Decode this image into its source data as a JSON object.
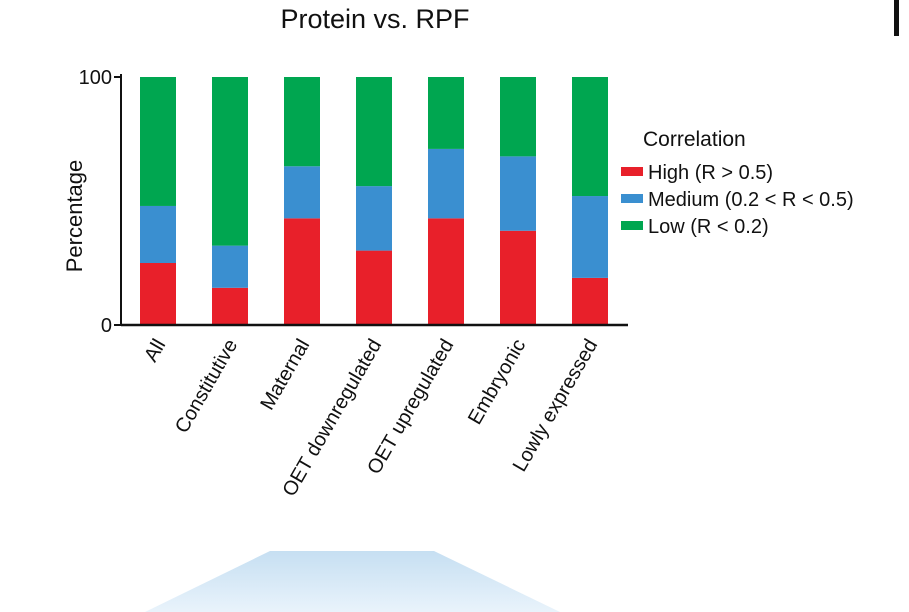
{
  "chart_data": {
    "type": "bar",
    "stacked": true,
    "title": "Protein vs. RPF",
    "xlabel": "",
    "ylabel": "Percentage",
    "ylim": [
      0,
      100
    ],
    "yticks": [
      "0",
      "100"
    ],
    "categories": [
      "All",
      "Constitutive",
      "Maternal",
      "OET downregulated",
      "OET upregulated",
      "Embryonic",
      "Lowly expressed"
    ],
    "series": [
      {
        "name": "High (R > 0.5)",
        "color": "#e8202a",
        "values": [
          25,
          15,
          43,
          30,
          43,
          38,
          19
        ]
      },
      {
        "name": "Medium (0.2 < R < 0.5)",
        "color": "#3a8fd0",
        "values": [
          23,
          17,
          21,
          26,
          28,
          30,
          33
        ]
      },
      {
        "name": "Low (R < 0.2)",
        "color": "#00a650",
        "values": [
          52,
          68,
          36,
          44,
          29,
          32,
          48
        ]
      }
    ],
    "legend": {
      "title": "Correlation",
      "position": "right"
    },
    "grid": false
  }
}
